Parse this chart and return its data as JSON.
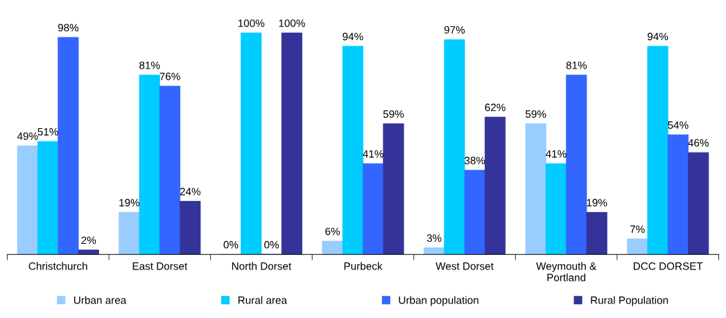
{
  "chart_data": {
    "type": "bar",
    "categories": [
      "Christchurch",
      "East Dorset",
      "North Dorset",
      "Purbeck",
      "West Dorset",
      "Weymouth &\nPortland",
      "DCC DORSET"
    ],
    "series": [
      {
        "name": "Urban area",
        "color": "#99ccff",
        "values": [
          49,
          19,
          0,
          6,
          3,
          59,
          7
        ],
        "value_labels": [
          "49%",
          "19%",
          "0%",
          "6%",
          "3%",
          "59%",
          "7%"
        ]
      },
      {
        "name": "Rural area",
        "color": "#00ccff",
        "values": [
          51,
          81,
          100,
          94,
          97,
          41,
          94
        ],
        "value_labels": [
          "51%",
          "81%",
          "100%",
          "94%",
          "97%",
          "41%",
          "94%"
        ]
      },
      {
        "name": "Urban population",
        "color": "#3366ff",
        "values": [
          98,
          76,
          0,
          41,
          38,
          81,
          54
        ],
        "value_labels": [
          "98%",
          "76%",
          "0%",
          "41%",
          "38%",
          "81%",
          "54%"
        ]
      },
      {
        "name": "Rural Population",
        "color": "#333399",
        "values": [
          2,
          24,
          100,
          59,
          62,
          19,
          46
        ],
        "value_labels": [
          "2%",
          "24%",
          "100%",
          "59%",
          "62%",
          "19%",
          "46%"
        ]
      }
    ],
    "legend": "bottom",
    "grid": false
  }
}
